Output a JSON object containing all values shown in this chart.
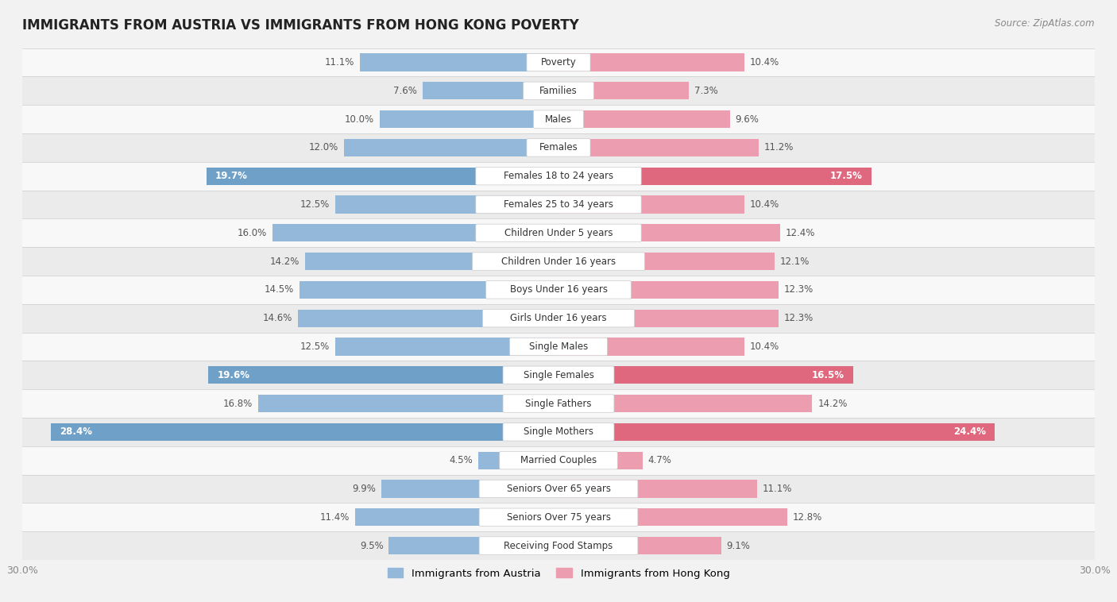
{
  "title": "IMMIGRANTS FROM AUSTRIA VS IMMIGRANTS FROM HONG KONG POVERTY",
  "source": "Source: ZipAtlas.com",
  "categories": [
    "Poverty",
    "Families",
    "Males",
    "Females",
    "Females 18 to 24 years",
    "Females 25 to 34 years",
    "Children Under 5 years",
    "Children Under 16 years",
    "Boys Under 16 years",
    "Girls Under 16 years",
    "Single Males",
    "Single Females",
    "Single Fathers",
    "Single Mothers",
    "Married Couples",
    "Seniors Over 65 years",
    "Seniors Over 75 years",
    "Receiving Food Stamps"
  ],
  "austria_values": [
    11.1,
    7.6,
    10.0,
    12.0,
    19.7,
    12.5,
    16.0,
    14.2,
    14.5,
    14.6,
    12.5,
    19.6,
    16.8,
    28.4,
    4.5,
    9.9,
    11.4,
    9.5
  ],
  "hongkong_values": [
    10.4,
    7.3,
    9.6,
    11.2,
    17.5,
    10.4,
    12.4,
    12.1,
    12.3,
    12.3,
    10.4,
    16.5,
    14.2,
    24.4,
    4.7,
    11.1,
    12.8,
    9.1
  ],
  "austria_color": "#94b8d9",
  "austria_color_highlight": "#6fa0c8",
  "hongkong_color": "#ed9db0",
  "hongkong_color_highlight": "#e0687e",
  "background_color": "#f2f2f2",
  "row_light": "#f8f8f8",
  "row_dark": "#ebebeb",
  "xlim": 30.0,
  "label_pill_color": "#ffffff",
  "label_text_color": "#333333",
  "value_text_color": "#555555",
  "legend_austria": "Immigrants from Austria",
  "legend_hongkong": "Immigrants from Hong Kong",
  "bar_height": 0.62,
  "highlight_rows": [
    4,
    11,
    13
  ],
  "axis_label_fontsize": 9,
  "title_fontsize": 12,
  "source_fontsize": 8.5,
  "label_fontsize": 8.5,
  "value_fontsize": 8.5
}
